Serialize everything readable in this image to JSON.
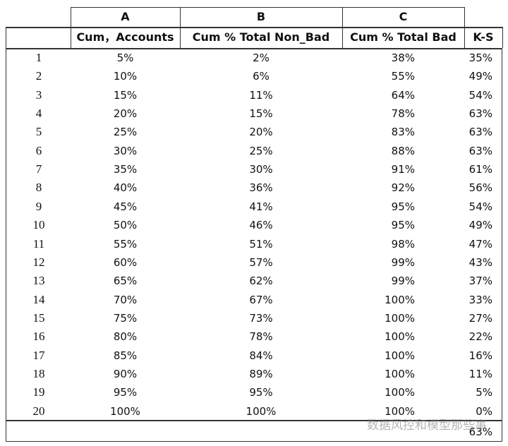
{
  "column_letters": [
    "A",
    "B",
    "C"
  ],
  "headers": [
    "Cum，Accounts",
    "Cum % Total Non_Bad",
    "Cum % Total Bad",
    "K-S"
  ],
  "rows": [
    [
      "1",
      "5%",
      "2%",
      "38%",
      "35%"
    ],
    [
      "2",
      "10%",
      "6%",
      "55%",
      "49%"
    ],
    [
      "3",
      "15%",
      "11%",
      "64%",
      "54%"
    ],
    [
      "4",
      "20%",
      "15%",
      "78%",
      "63%"
    ],
    [
      "5",
      "25%",
      "20%",
      "83%",
      "63%"
    ],
    [
      "6",
      "30%",
      "25%",
      "88%",
      "63%"
    ],
    [
      "7",
      "35%",
      "30%",
      "91%",
      "61%"
    ],
    [
      "8",
      "40%",
      "36%",
      "92%",
      "56%"
    ],
    [
      "9",
      "45%",
      "41%",
      "95%",
      "54%"
    ],
    [
      "10",
      "50%",
      "46%",
      "95%",
      "49%"
    ],
    [
      "11",
      "55%",
      "51%",
      "98%",
      "47%"
    ],
    [
      "12",
      "60%",
      "57%",
      "99%",
      "43%"
    ],
    [
      "13",
      "65%",
      "62%",
      "99%",
      "37%"
    ],
    [
      "14",
      "70%",
      "67%",
      "100%",
      "33%"
    ],
    [
      "15",
      "75%",
      "73%",
      "100%",
      "27%"
    ],
    [
      "16",
      "80%",
      "78%",
      "100%",
      "22%"
    ],
    [
      "17",
      "85%",
      "84%",
      "100%",
      "16%"
    ],
    [
      "18",
      "90%",
      "89%",
      "100%",
      "11%"
    ],
    [
      "19",
      "95%",
      "95%",
      "100%",
      "5%"
    ],
    [
      "20",
      "100%",
      "100%",
      "100%",
      "0%"
    ]
  ],
  "footer": "63%",
  "watermark": "数据风控和模型那些事"
}
